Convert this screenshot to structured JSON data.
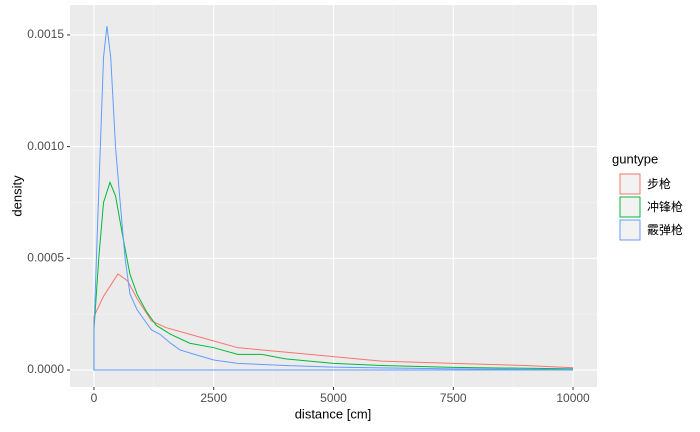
{
  "chart_data": {
    "type": "line",
    "x_label": "distance [cm]",
    "y_label": "density",
    "legend_title": "guntype",
    "legend": "right",
    "grid": true,
    "xlim": [
      -500,
      10500
    ],
    "xticks": [
      0,
      2500,
      5000,
      7500,
      10000
    ],
    "ylim": [
      -7.6e-05,
      0.001634
    ],
    "yticks": [
      {
        "value": 0,
        "label": "0.0000"
      },
      {
        "value": 0.0005,
        "label": "0.0005"
      },
      {
        "value": 0.001,
        "label": "0.0010"
      },
      {
        "value": 0.0015,
        "label": "0.0015"
      }
    ],
    "series": [
      {
        "name": "步枪",
        "color": "#F8766D",
        "x": [
          0,
          200,
          500,
          700,
          900,
          1200,
          1500,
          2000,
          2500,
          3000,
          4000,
          5000,
          6000,
          7500,
          9000,
          10000
        ],
        "values": [
          0.00024,
          0.00033,
          0.00043,
          0.0004,
          0.00032,
          0.00022,
          0.00019,
          0.00016,
          0.00013,
          0.0001,
          8e-05,
          6e-05,
          4e-05,
          3e-05,
          2e-05,
          1e-05
        ]
      },
      {
        "name": "冲锋枪",
        "color": "#00BA38",
        "x": [
          0,
          100,
          200,
          334,
          450,
          600,
          750,
          900,
          1100,
          1300,
          1600,
          2000,
          2500,
          3000,
          3500,
          4000,
          5000,
          6000,
          7500,
          10000
        ],
        "values": [
          0.00018,
          0.0005,
          0.00075,
          0.00084,
          0.00078,
          0.0006,
          0.00043,
          0.00034,
          0.00026,
          0.0002,
          0.00016,
          0.00012,
          0.0001,
          7e-05,
          7e-05,
          5e-05,
          3e-05,
          2e-05,
          1.2e-05,
          5e-06
        ]
      },
      {
        "name": "霰弹枪",
        "color": "#619CFF",
        "x": [
          0,
          100,
          200,
          271,
          350,
          450,
          543,
          650,
          752,
          900,
          1065,
          1200,
          1378,
          1600,
          1795,
          2100,
          2500,
          3000,
          4000,
          5000,
          7500,
          10000
        ],
        "values": [
          0.00018,
          0.0008,
          0.0014,
          0.00154,
          0.0014,
          0.001,
          0.00076,
          0.0005,
          0.00034,
          0.00027,
          0.00022,
          0.00018,
          0.00016,
          0.00012,
          9e-05,
          7e-05,
          4.5e-05,
          3e-05,
          2e-05,
          1.3e-05,
          5e-06,
          2e-06
        ]
      }
    ]
  }
}
